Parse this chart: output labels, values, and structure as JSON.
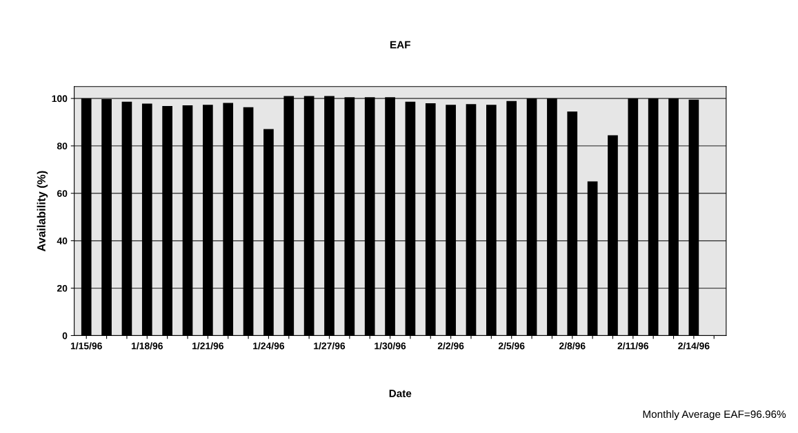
{
  "chart_data": {
    "type": "bar",
    "title": "EAF",
    "xlabel": "Date",
    "ylabel": "Availability (%)",
    "categories": [
      "1/15/96",
      null,
      null,
      "1/18/96",
      null,
      null,
      "1/21/96",
      null,
      null,
      "1/24/96",
      null,
      null,
      "1/27/96",
      null,
      null,
      "1/30/96",
      null,
      null,
      "2/2/96",
      null,
      null,
      "2/5/96",
      null,
      null,
      "2/8/96",
      null,
      null,
      "2/11/96",
      null,
      null,
      "2/14/96",
      null
    ],
    "values": [
      100,
      99.7,
      98.6,
      97.8,
      96.8,
      97.1,
      97.3,
      98.1,
      96.3,
      87.1,
      101,
      101,
      101,
      100.5,
      100.5,
      100.5,
      98.6,
      98,
      97.3,
      97.6,
      97.3,
      98.9,
      100,
      100,
      94.5,
      65,
      84.5,
      100,
      100,
      100,
      99.5,
      null
    ],
    "color": "#000000",
    "ylim": [
      0,
      105
    ],
    "yticks": [
      0,
      20,
      40,
      60,
      80,
      100
    ],
    "grid": "y",
    "annotations": [
      "Monthly Average EAF=96.96%"
    ]
  }
}
